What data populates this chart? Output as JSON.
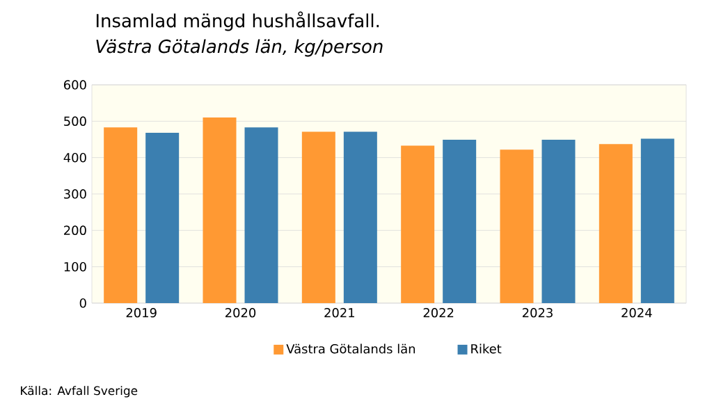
{
  "chart_data": {
    "type": "bar",
    "title": "Insamlad mängd hushållsavfall.",
    "subtitle": "Västra Götalands län, kg/person",
    "categories": [
      "2019",
      "2020",
      "2021",
      "2022",
      "2023",
      "2024"
    ],
    "series": [
      {
        "name": "Västra Götalands län",
        "color": "#ff9933",
        "values": [
          483,
          510,
          471,
          433,
          422,
          437
        ]
      },
      {
        "name": "Riket",
        "color": "#3b7fb0",
        "values": [
          468,
          483,
          471,
          449,
          449,
          452
        ]
      }
    ],
    "ylim": [
      0,
      600
    ],
    "yticks": [
      0,
      100,
      200,
      300,
      400,
      500,
      600
    ],
    "grid": "y",
    "legend": "bottom",
    "annotations": [
      "Källa: Avfall Sverige"
    ]
  }
}
